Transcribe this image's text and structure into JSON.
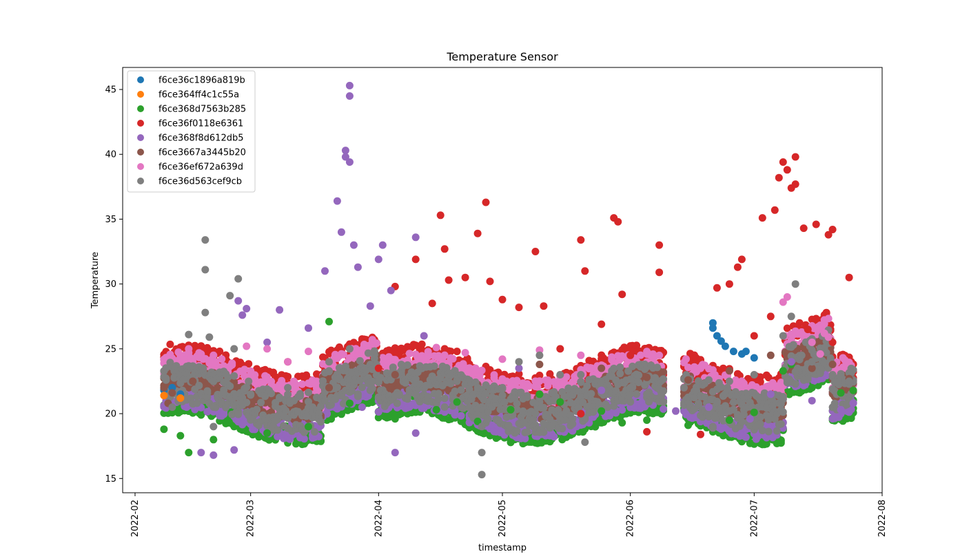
{
  "chart_data": {
    "type": "scatter",
    "title": "Temperature Sensor",
    "xlabel": "timestamp",
    "ylabel": "Temperature",
    "xlim": [
      "2022-01-29",
      "2022-08-01"
    ],
    "ylim": [
      13.9,
      46.7
    ],
    "x_ticks": [
      "2022-02",
      "2022-03",
      "2022-04",
      "2022-05",
      "2022-06",
      "2022-07",
      "2022-08"
    ],
    "y_ticks": [
      15,
      20,
      25,
      30,
      35,
      40,
      45
    ],
    "grid": false,
    "legend_position": "upper-left",
    "series": [
      {
        "name": "f6ce36c1896a819b",
        "color": "#1f77b4",
        "points": [
          [
            "2022-02-08",
            21.8
          ],
          [
            "2022-02-10",
            22.0
          ],
          [
            "2022-02-12",
            21.5
          ],
          [
            "2022-06-21",
            27.0
          ],
          [
            "2022-06-21",
            26.6
          ],
          [
            "2022-06-22",
            26.0
          ],
          [
            "2022-06-23",
            25.6
          ],
          [
            "2022-06-24",
            25.2
          ],
          [
            "2022-06-26",
            24.8
          ],
          [
            "2022-06-28",
            24.6
          ],
          [
            "2022-06-29",
            24.8
          ],
          [
            "2022-07-01",
            24.3
          ]
        ]
      },
      {
        "name": "f6ce364ff4c1c55a",
        "color": "#ff7f0e",
        "points": [
          [
            "2022-02-08",
            21.4
          ],
          [
            "2022-02-12",
            21.2
          ]
        ]
      },
      {
        "name": "f6ce368d7563b285",
        "color": "#2ca02c",
        "points": [
          [
            "2022-02-08",
            18.8
          ],
          [
            "2022-02-12",
            18.3
          ],
          [
            "2022-02-14",
            17.0
          ],
          [
            "2022-02-20",
            18.0
          ],
          [
            "2022-03-05",
            18.5
          ],
          [
            "2022-03-15",
            19.0
          ],
          [
            "2022-03-20",
            27.1
          ],
          [
            "2022-03-25",
            20.8
          ],
          [
            "2022-04-05",
            19.6
          ],
          [
            "2022-04-15",
            20.3
          ],
          [
            "2022-04-20",
            20.9
          ],
          [
            "2022-04-25",
            19.4
          ],
          [
            "2022-05-03",
            20.3
          ],
          [
            "2022-05-10",
            21.5
          ],
          [
            "2022-05-15",
            20.9
          ],
          [
            "2022-05-25",
            20.2
          ],
          [
            "2022-05-30",
            19.3
          ],
          [
            "2022-06-05",
            19.5
          ],
          [
            "2022-06-15",
            19.1
          ],
          [
            "2022-06-25",
            19.5
          ],
          [
            "2022-07-01",
            20.1
          ],
          [
            "2022-07-08",
            23.3
          ],
          [
            "2022-07-10",
            23.8
          ],
          [
            "2022-07-15",
            22.0
          ],
          [
            "2022-07-22",
            21.6
          ],
          [
            "2022-07-25",
            21.8
          ]
        ]
      },
      {
        "name": "f6ce36f0118e6361",
        "color": "#d62728",
        "points": [
          [
            "2022-04-05",
            29.8
          ],
          [
            "2022-04-10",
            31.9
          ],
          [
            "2022-04-14",
            28.5
          ],
          [
            "2022-04-16",
            35.3
          ],
          [
            "2022-04-17",
            32.7
          ],
          [
            "2022-04-18",
            30.3
          ],
          [
            "2022-04-22",
            30.5
          ],
          [
            "2022-04-25",
            33.9
          ],
          [
            "2022-04-27",
            36.3
          ],
          [
            "2022-04-28",
            30.2
          ],
          [
            "2022-05-01",
            28.8
          ],
          [
            "2022-05-05",
            28.2
          ],
          [
            "2022-05-09",
            32.5
          ],
          [
            "2022-05-11",
            28.3
          ],
          [
            "2022-05-20",
            33.4
          ],
          [
            "2022-05-21",
            31.0
          ],
          [
            "2022-05-25",
            26.9
          ],
          [
            "2022-05-28",
            35.1
          ],
          [
            "2022-05-29",
            34.8
          ],
          [
            "2022-05-30",
            29.2
          ],
          [
            "2022-06-08",
            33.0
          ],
          [
            "2022-06-08",
            30.9
          ],
          [
            "2022-06-22",
            29.7
          ],
          [
            "2022-06-25",
            30.0
          ],
          [
            "2022-06-27",
            31.3
          ],
          [
            "2022-06-28",
            31.9
          ],
          [
            "2022-07-03",
            35.1
          ],
          [
            "2022-07-06",
            35.7
          ],
          [
            "2022-07-07",
            38.2
          ],
          [
            "2022-07-08",
            39.4
          ],
          [
            "2022-07-09",
            38.8
          ],
          [
            "2022-07-10",
            37.4
          ],
          [
            "2022-07-11",
            39.8
          ],
          [
            "2022-07-11",
            37.7
          ],
          [
            "2022-07-13",
            34.3
          ],
          [
            "2022-07-16",
            34.6
          ],
          [
            "2022-07-19",
            33.8
          ],
          [
            "2022-07-20",
            34.2
          ],
          [
            "2022-07-24",
            30.5
          ],
          [
            "2022-05-20",
            20.0
          ],
          [
            "2022-06-05",
            18.6
          ],
          [
            "2022-06-18",
            18.4
          ],
          [
            "2022-03-10",
            24.0
          ],
          [
            "2022-04-01",
            23.5
          ],
          [
            "2022-04-20",
            24.8
          ],
          [
            "2022-05-15",
            25.0
          ],
          [
            "2022-06-01",
            24.5
          ],
          [
            "2022-07-01",
            26.0
          ],
          [
            "2022-07-05",
            27.5
          ],
          [
            "2022-07-14",
            26.5
          ],
          [
            "2022-07-20",
            25.5
          ]
        ]
      },
      {
        "name": "f6ce368f8d612db5",
        "color": "#9467bd",
        "points": [
          [
            "2022-02-17",
            17.0
          ],
          [
            "2022-02-20",
            16.8
          ],
          [
            "2022-02-25",
            17.2
          ],
          [
            "2022-02-26",
            28.7
          ],
          [
            "2022-02-27",
            27.6
          ],
          [
            "2022-02-28",
            28.1
          ],
          [
            "2022-03-05",
            25.5
          ],
          [
            "2022-03-08",
            28.0
          ],
          [
            "2022-03-15",
            26.6
          ],
          [
            "2022-03-19",
            31.0
          ],
          [
            "2022-03-22",
            36.4
          ],
          [
            "2022-03-23",
            34.0
          ],
          [
            "2022-03-24",
            40.3
          ],
          [
            "2022-03-24",
            39.8
          ],
          [
            "2022-03-25",
            45.3
          ],
          [
            "2022-03-25",
            44.5
          ],
          [
            "2022-03-25",
            39.4
          ],
          [
            "2022-03-26",
            33.0
          ],
          [
            "2022-03-27",
            31.3
          ],
          [
            "2022-03-30",
            28.3
          ],
          [
            "2022-04-01",
            31.9
          ],
          [
            "2022-04-02",
            33.0
          ],
          [
            "2022-04-04",
            29.5
          ],
          [
            "2022-04-10",
            33.6
          ],
          [
            "2022-04-12",
            26.0
          ],
          [
            "2022-03-28",
            20.5
          ],
          [
            "2022-04-05",
            17.0
          ],
          [
            "2022-04-10",
            18.5
          ],
          [
            "2022-05-05",
            23.5
          ],
          [
            "2022-05-25",
            21.8
          ],
          [
            "2022-06-12",
            20.2
          ],
          [
            "2022-06-20",
            20.5
          ],
          [
            "2022-06-30",
            19.6
          ],
          [
            "2022-07-05",
            21.5
          ],
          [
            "2022-07-10",
            24.0
          ],
          [
            "2022-07-15",
            21.0
          ],
          [
            "2022-07-22",
            20.3
          ],
          [
            "2022-07-25",
            20.8
          ]
        ]
      },
      {
        "name": "f6ce3667a3445b20",
        "color": "#8c564b",
        "points": [
          [
            "2022-02-08",
            22.0
          ],
          [
            "2022-02-09",
            20.8
          ],
          [
            "2022-02-10",
            21.6
          ],
          [
            "2022-02-15",
            22.5
          ],
          [
            "2022-03-20",
            22.0
          ],
          [
            "2022-04-05",
            23.0
          ],
          [
            "2022-05-10",
            23.8
          ],
          [
            "2022-05-25",
            23.5
          ],
          [
            "2022-06-05",
            22.8
          ],
          [
            "2022-06-15",
            22.6
          ],
          [
            "2022-06-25",
            23.3
          ],
          [
            "2022-07-05",
            24.5
          ],
          [
            "2022-07-15",
            23.5
          ],
          [
            "2022-07-20",
            23.8
          ],
          [
            "2022-07-24",
            22.7
          ]
        ]
      },
      {
        "name": "f6ce36ef672a639d",
        "color": "#e377c2",
        "points": [
          [
            "2022-02-14",
            25.0
          ],
          [
            "2022-02-20",
            24.5
          ],
          [
            "2022-02-28",
            25.2
          ],
          [
            "2022-03-05",
            25.0
          ],
          [
            "2022-03-10",
            24.0
          ],
          [
            "2022-03-15",
            24.8
          ],
          [
            "2022-04-15",
            25.1
          ],
          [
            "2022-04-22",
            24.7
          ],
          [
            "2022-05-01",
            24.2
          ],
          [
            "2022-05-10",
            24.9
          ],
          [
            "2022-05-20",
            24.5
          ],
          [
            "2022-07-08",
            28.6
          ],
          [
            "2022-07-09",
            29.0
          ],
          [
            "2022-07-15",
            25.5
          ],
          [
            "2022-07-17",
            24.6
          ],
          [
            "2022-07-18",
            26.2
          ],
          [
            "2022-07-19",
            25.9
          ]
        ]
      },
      {
        "name": "f6ce36d563cef9cb",
        "color": "#7f7f7f",
        "points": [
          [
            "2022-02-14",
            26.1
          ],
          [
            "2022-02-18",
            33.4
          ],
          [
            "2022-02-18",
            31.1
          ],
          [
            "2022-02-18",
            27.8
          ],
          [
            "2022-02-19",
            25.9
          ],
          [
            "2022-02-24",
            29.1
          ],
          [
            "2022-02-26",
            30.4
          ],
          [
            "2022-02-25",
            25.0
          ],
          [
            "2022-02-10",
            20.5
          ],
          [
            "2022-02-20",
            19.0
          ],
          [
            "2022-03-01",
            21.5
          ],
          [
            "2022-03-10",
            22.0
          ],
          [
            "2022-03-20",
            24.0
          ],
          [
            "2022-03-25",
            25.0
          ],
          [
            "2022-04-01",
            22.5
          ],
          [
            "2022-04-10",
            21.5
          ],
          [
            "2022-04-20",
            22.5
          ],
          [
            "2022-04-25",
            22.0
          ],
          [
            "2022-04-26",
            19.0
          ],
          [
            "2022-04-26",
            17.0
          ],
          [
            "2022-04-26",
            15.3
          ],
          [
            "2022-05-01",
            22.0
          ],
          [
            "2022-05-05",
            24.0
          ],
          [
            "2022-05-10",
            24.5
          ],
          [
            "2022-05-15",
            23.0
          ],
          [
            "2022-05-20",
            23.0
          ],
          [
            "2022-05-21",
            17.8
          ],
          [
            "2022-05-25",
            22.5
          ],
          [
            "2022-06-01",
            22.0
          ],
          [
            "2022-06-05",
            21.5
          ],
          [
            "2022-06-14",
            22.0
          ],
          [
            "2022-06-21",
            19.0
          ],
          [
            "2022-06-21",
            18.9
          ],
          [
            "2022-06-25",
            22.5
          ],
          [
            "2022-07-01",
            23.0
          ],
          [
            "2022-07-08",
            26.0
          ],
          [
            "2022-07-10",
            27.5
          ],
          [
            "2022-07-11",
            30.0
          ],
          [
            "2022-07-15",
            24.0
          ],
          [
            "2022-07-20",
            23.0
          ],
          [
            "2022-07-24",
            22.5
          ]
        ]
      }
    ]
  }
}
